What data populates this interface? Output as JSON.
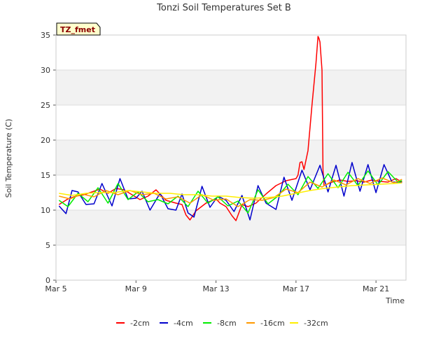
{
  "chart_data": {
    "type": "line",
    "title": "Tonzi Soil Temperatures Set B",
    "xlabel": "Time",
    "ylabel": "Soil Temperature (C)",
    "site_badge": "TZ_fmet",
    "xlim": [
      5.0,
      22.5
    ],
    "ylim": [
      0,
      35
    ],
    "yticks": [
      0,
      5,
      10,
      15,
      20,
      25,
      30,
      35
    ],
    "xticks": [
      {
        "value": 5,
        "label": "Mar 5"
      },
      {
        "value": 9,
        "label": "Mar 9"
      },
      {
        "value": 13,
        "label": "Mar 13"
      },
      {
        "value": 17,
        "label": "Mar 17"
      },
      {
        "value": 21,
        "label": "Mar 21"
      }
    ],
    "background_bands": true,
    "legend_position": "bottom",
    "series": [
      {
        "name": "-2cm",
        "color": "#ff0000",
        "x": [
          5.15,
          5.6,
          6.0,
          6.4,
          6.8,
          7.2,
          7.6,
          8.0,
          8.4,
          8.8,
          9.2,
          9.6,
          10.0,
          10.5,
          11.0,
          11.3,
          11.5,
          11.7,
          12.0,
          12.5,
          13.0,
          13.2,
          13.5,
          13.8,
          14.0,
          14.3,
          14.6,
          15.0,
          15.5,
          16.0,
          16.5,
          17.0,
          17.1,
          17.2,
          17.3,
          17.4,
          17.6,
          17.8,
          18.0,
          18.1,
          18.15,
          18.2,
          18.3,
          18.35,
          18.4,
          18.8,
          19.2,
          19.6,
          20.0,
          20.4,
          20.8,
          21.2,
          21.6,
          22.0,
          22.3
        ],
        "y": [
          10.8,
          11.6,
          12.0,
          12.2,
          12.6,
          13.0,
          12.4,
          13.1,
          12.9,
          12.2,
          11.5,
          12.0,
          12.9,
          11.4,
          11.0,
          10.8,
          9.3,
          8.6,
          9.9,
          11.0,
          11.6,
          11.0,
          10.5,
          9.2,
          8.5,
          10.8,
          10.5,
          11.0,
          12.3,
          13.5,
          14.2,
          14.5,
          15.0,
          16.8,
          16.9,
          15.8,
          18.5,
          25.0,
          31.0,
          34.8,
          34.5,
          34.0,
          30.0,
          15.8,
          13.5,
          14.0,
          14.3,
          14.1,
          14.2,
          14.0,
          14.3,
          14.1,
          14.0,
          14.5,
          14.0
        ]
      },
      {
        "name": "-4cm",
        "color": "#0000cc",
        "x": [
          5.15,
          5.5,
          5.8,
          6.1,
          6.5,
          6.9,
          7.3,
          7.8,
          8.2,
          8.6,
          9.0,
          9.3,
          9.7,
          10.2,
          10.6,
          11.0,
          11.3,
          11.6,
          11.9,
          12.3,
          12.7,
          13.1,
          13.5,
          13.9,
          14.3,
          14.7,
          15.1,
          15.5,
          16.0,
          16.4,
          16.8,
          17.3,
          17.7,
          18.2,
          18.6,
          19.0,
          19.4,
          19.8,
          20.2,
          20.6,
          21.0,
          21.4,
          21.8,
          22.2,
          22.3
        ],
        "y": [
          10.6,
          9.5,
          12.8,
          12.6,
          10.8,
          10.9,
          13.8,
          10.6,
          14.5,
          11.6,
          11.7,
          12.7,
          10.0,
          12.4,
          10.2,
          10.0,
          12.3,
          9.6,
          9.0,
          13.4,
          10.4,
          12.0,
          11.4,
          9.8,
          12.1,
          8.6,
          13.5,
          11.0,
          10.1,
          14.7,
          11.4,
          15.7,
          12.9,
          16.4,
          12.6,
          16.4,
          12.0,
          16.8,
          12.7,
          16.5,
          12.5,
          16.5,
          14.0,
          14.0,
          13.9
        ]
      },
      {
        "name": "-8cm",
        "color": "#00ee00",
        "x": [
          5.15,
          5.6,
          6.1,
          6.6,
          7.1,
          7.6,
          8.1,
          8.6,
          9.1,
          9.6,
          10.1,
          10.6,
          11.1,
          11.6,
          12.1,
          12.6,
          13.1,
          13.6,
          14.1,
          14.6,
          15.1,
          15.6,
          16.1,
          16.6,
          17.1,
          17.6,
          18.1,
          18.6,
          19.1,
          19.6,
          20.1,
          20.6,
          21.1,
          21.6,
          22.1,
          22.3
        ],
        "y": [
          11.4,
          10.5,
          12.4,
          11.2,
          13.2,
          11.0,
          13.8,
          11.5,
          12.6,
          11.2,
          11.5,
          10.9,
          12.0,
          10.5,
          12.7,
          11.0,
          11.9,
          10.6,
          11.3,
          9.6,
          12.9,
          10.9,
          12.0,
          13.7,
          12.2,
          14.8,
          13.1,
          15.2,
          13.2,
          15.4,
          13.5,
          15.6,
          13.6,
          15.5,
          14.0,
          14.2
        ]
      },
      {
        "name": "-16cm",
        "color": "#ff9900",
        "x": [
          5.15,
          5.7,
          6.3,
          6.9,
          7.5,
          8.1,
          8.7,
          9.3,
          9.9,
          10.5,
          11.1,
          11.7,
          12.3,
          12.9,
          13.5,
          14.1,
          14.7,
          15.3,
          15.9,
          16.5,
          17.1,
          17.7,
          18.3,
          18.9,
          19.5,
          20.1,
          20.7,
          21.3,
          21.9,
          22.3
        ],
        "y": [
          12.0,
          11.6,
          12.3,
          11.9,
          12.8,
          12.2,
          12.8,
          12.2,
          12.4,
          11.6,
          11.9,
          11.0,
          12.2,
          11.4,
          11.6,
          10.5,
          11.5,
          11.4,
          11.8,
          13.0,
          12.5,
          14.0,
          13.3,
          14.3,
          13.6,
          14.5,
          13.8,
          14.6,
          13.9,
          14.4
        ]
      },
      {
        "name": "-32cm",
        "color": "#ffee00",
        "x": [
          5.15,
          5.8,
          6.5,
          7.2,
          7.9,
          8.6,
          9.3,
          10.0,
          10.7,
          11.4,
          12.1,
          12.8,
          13.5,
          14.2,
          14.9,
          15.6,
          16.3,
          17.0,
          17.7,
          18.4,
          19.1,
          19.8,
          20.5,
          21.2,
          21.9,
          22.3
        ],
        "y": [
          12.4,
          12.1,
          12.4,
          12.5,
          12.5,
          12.8,
          12.6,
          12.4,
          12.4,
          12.2,
          12.2,
          12.0,
          12.0,
          11.8,
          11.7,
          11.8,
          12.0,
          12.4,
          12.8,
          13.1,
          13.3,
          13.5,
          13.6,
          13.7,
          13.8,
          13.9
        ]
      }
    ]
  }
}
